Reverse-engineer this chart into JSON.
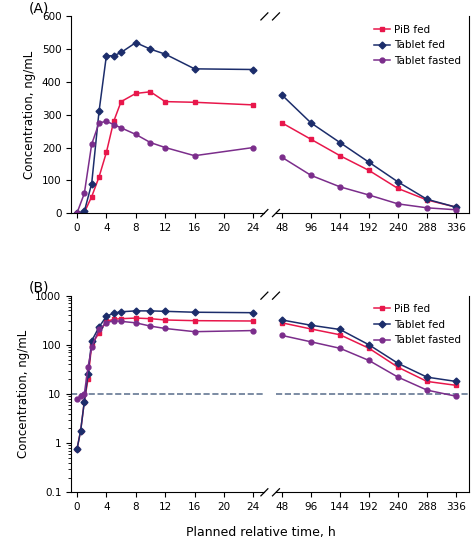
{
  "panel_A": {
    "title": "(A)",
    "ylabel": "Concentration, ng/mL",
    "ylim": [
      0,
      600
    ],
    "yticks": [
      0,
      100,
      200,
      300,
      400,
      500,
      600
    ],
    "series": {
      "pib_fed": {
        "label": "PiB fed",
        "color": "#e8174b",
        "marker": "s",
        "x1": [
          0,
          1,
          2,
          3,
          4,
          5,
          6,
          8,
          10,
          12,
          16,
          24
        ],
        "y1": [
          0,
          2,
          50,
          110,
          185,
          280,
          340,
          365,
          370,
          340,
          338,
          330
        ],
        "x2": [
          48,
          96,
          144,
          192,
          240,
          288,
          336
        ],
        "y2": [
          275,
          225,
          175,
          130,
          75,
          40,
          18
        ]
      },
      "tablet_fed": {
        "label": "Tablet fed",
        "color": "#1c2d6b",
        "marker": "D",
        "x1": [
          0,
          1,
          2,
          3,
          4,
          5,
          6,
          8,
          10,
          12,
          16,
          24
        ],
        "y1": [
          0,
          5,
          90,
          310,
          480,
          480,
          490,
          520,
          500,
          485,
          440,
          438
        ],
        "x2": [
          48,
          96,
          144,
          192,
          240,
          288,
          336
        ],
        "y2": [
          360,
          275,
          215,
          155,
          95,
          42,
          18
        ]
      },
      "tablet_fasted": {
        "label": "Tablet fasted",
        "color": "#7b2d8b",
        "marker": "o",
        "x1": [
          0,
          1,
          2,
          3,
          4,
          5,
          6,
          8,
          10,
          12,
          16,
          24
        ],
        "y1": [
          0,
          60,
          210,
          275,
          280,
          270,
          260,
          240,
          215,
          200,
          175,
          200
        ],
        "x2": [
          48,
          96,
          144,
          192,
          240,
          288,
          336
        ],
        "y2": [
          170,
          115,
          80,
          55,
          28,
          16,
          10
        ]
      }
    }
  },
  "panel_B": {
    "title": "(B)",
    "ylabel": "Concentration, ng/mL",
    "xlabel": "Planned relative time, h",
    "ylim": [
      0.1,
      1000
    ],
    "dashed_line_y": 10,
    "series": {
      "pib_fed": {
        "label": "PiB fed",
        "color": "#e8174b",
        "marker": "s",
        "x1": [
          0,
          0.5,
          1,
          1.5,
          2,
          3,
          4,
          5,
          6,
          8,
          10,
          12,
          16,
          24
        ],
        "y1": [
          0.75,
          1.8,
          7,
          20,
          100,
          175,
          300,
          330,
          340,
          350,
          340,
          320,
          310,
          305
        ],
        "x2": [
          48,
          96,
          144,
          192,
          240,
          288,
          336
        ],
        "y2": [
          280,
          210,
          160,
          85,
          35,
          18,
          15
        ]
      },
      "tablet_fed": {
        "label": "Tablet fed",
        "color": "#1c2d6b",
        "marker": "D",
        "x1": [
          0,
          0.5,
          1,
          1.5,
          2,
          3,
          4,
          5,
          6,
          8,
          10,
          12,
          16,
          24
        ],
        "y1": [
          0.75,
          1.8,
          7,
          25,
          120,
          230,
          380,
          440,
          470,
          490,
          490,
          480,
          460,
          450
        ],
        "x2": [
          48,
          96,
          144,
          192,
          240,
          288,
          336
        ],
        "y2": [
          320,
          250,
          205,
          100,
          42,
          22,
          18
        ]
      },
      "tablet_fasted": {
        "label": "Tablet fasted",
        "color": "#7b2d8b",
        "marker": "o",
        "x1": [
          0,
          0.5,
          1,
          1.5,
          2,
          3,
          4,
          5,
          6,
          8,
          10,
          12,
          16,
          24
        ],
        "y1": [
          8,
          9,
          10,
          35,
          90,
          205,
          280,
          310,
          300,
          280,
          240,
          215,
          185,
          195
        ],
        "x2": [
          48,
          96,
          144,
          192,
          240,
          288,
          336
        ],
        "y2": [
          155,
          115,
          85,
          48,
          22,
          12,
          9
        ]
      }
    }
  },
  "x1_ticks": [
    0,
    4,
    8,
    12,
    16,
    20,
    24
  ],
  "x2_ticks": [
    48,
    96,
    144,
    192,
    240,
    288,
    336
  ],
  "background_color": "#ffffff"
}
